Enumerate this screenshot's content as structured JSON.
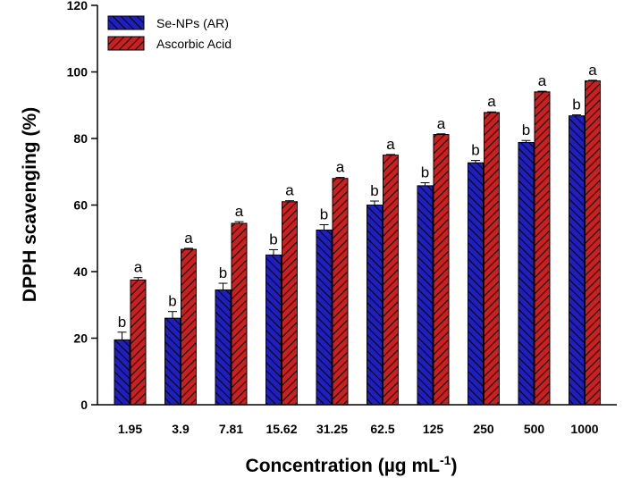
{
  "chart_data": {
    "type": "bar",
    "title": "",
    "xlabel": "Concentration (µg mL",
    "xlabel_sup": "-1",
    "xlabel_end": ")",
    "ylabel": "DPPH scavenging (%)",
    "ylim": [
      0,
      120
    ],
    "yticks": [
      0,
      20,
      40,
      60,
      80,
      100,
      120
    ],
    "legend_position": "top-left",
    "categories": [
      "1.95",
      "3.9",
      "7.81",
      "15.62",
      "31.25",
      "62.5",
      "125",
      "250",
      "500",
      "1000"
    ],
    "series": [
      {
        "name": "Se-NPs (AR)",
        "color": "#1f1fbf",
        "values": [
          19.5,
          26,
          34.5,
          45,
          52.5,
          60,
          65.8,
          72.7,
          78.8,
          86.8
        ],
        "errors": [
          2.3,
          2.0,
          2.0,
          1.6,
          1.6,
          1.2,
          0.9,
          0.7,
          0.6,
          0.3
        ],
        "labels": [
          "b",
          "b",
          "b",
          "b",
          "b",
          "b",
          "b",
          "b",
          "b",
          "b"
        ]
      },
      {
        "name": "Ascorbic Acid",
        "color": "#cc1f1f",
        "values": [
          37.5,
          46.7,
          54.5,
          61,
          68,
          75,
          81.2,
          87.8,
          94,
          97.3
        ],
        "errors": [
          0.7,
          0.3,
          0.5,
          0.3,
          0.3,
          0.2,
          0.2,
          0.2,
          0.2,
          0.2
        ],
        "labels": [
          "a",
          "a",
          "a",
          "a",
          "a",
          "a",
          "a",
          "a",
          "a",
          "a"
        ]
      }
    ]
  }
}
